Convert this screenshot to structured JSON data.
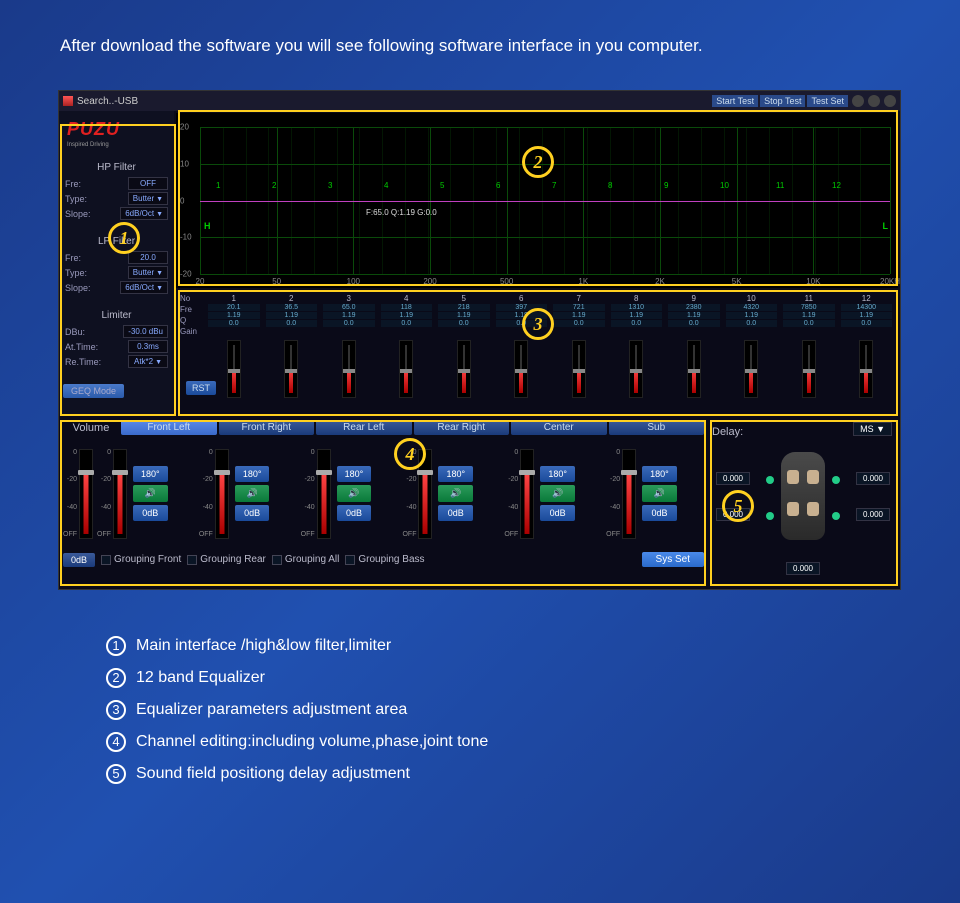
{
  "header_text": "After download the software you will see following software interface in you computer.",
  "titlebar": {
    "title": "Search..-USB",
    "buttons": [
      "Start Test",
      "Stop Test",
      "Test Set"
    ]
  },
  "logo": "PUZU",
  "logo_sub": "Inspired Driving",
  "hp_filter": {
    "title": "HP Filter",
    "fre_label": "Fre:",
    "fre_val": "OFF",
    "type_label": "Type:",
    "type_val": "Butter",
    "slope_label": "Slope:",
    "slope_val": "6dB/Oct"
  },
  "lp_filter": {
    "title": "LP Filter",
    "fre_label": "Fre:",
    "fre_val": "20.0",
    "type_label": "Type:",
    "type_val": "Butter",
    "slope_label": "Slope:",
    "slope_val": "6dB/Oct"
  },
  "limiter": {
    "title": "Limiter",
    "dbu_label": "DBu:",
    "dbu_val": "-30.0 dBu",
    "attime_label": "At.Time:",
    "attime_val": "0.3ms",
    "retime_label": "Re.Time:",
    "retime_val": "Atk*2"
  },
  "geq_mode": "GEQ Mode",
  "rst": "RST",
  "eq_graph": {
    "y_ticks": [
      "20",
      "10",
      "0",
      "-10",
      "-20"
    ],
    "x_ticks": [
      "20",
      "50",
      "100",
      "200",
      "500",
      "1K",
      "2K",
      "5K",
      "10K",
      "20KH"
    ],
    "markers": [
      "1",
      "2",
      "3",
      "4",
      "5",
      "6",
      "7",
      "8",
      "9",
      "10",
      "11",
      "12"
    ],
    "info": "F:65.0 Q:1.19 G:0.0",
    "left_label": "H",
    "right_label": "L"
  },
  "eq_params": {
    "headers": [
      "No",
      "Fre",
      "Q",
      "Gain"
    ],
    "cols": [
      {
        "no": "1",
        "fre": "20.1",
        "q": "1.19",
        "gain": "0.0"
      },
      {
        "no": "2",
        "fre": "36.5",
        "q": "1.19",
        "gain": "0.0"
      },
      {
        "no": "3",
        "fre": "65.0",
        "q": "1.19",
        "gain": "0.0"
      },
      {
        "no": "4",
        "fre": "118",
        "q": "1.19",
        "gain": "0.0"
      },
      {
        "no": "5",
        "fre": "218",
        "q": "1.19",
        "gain": "0.0"
      },
      {
        "no": "6",
        "fre": "397",
        "q": "1.19",
        "gain": "0.0"
      },
      {
        "no": "7",
        "fre": "721",
        "q": "1.19",
        "gain": "0.0"
      },
      {
        "no": "8",
        "fre": "1310",
        "q": "1.19",
        "gain": "0.0"
      },
      {
        "no": "9",
        "fre": "2380",
        "q": "1.19",
        "gain": "0.0"
      },
      {
        "no": "10",
        "fre": "4320",
        "q": "1.19",
        "gain": "0.0"
      },
      {
        "no": "11",
        "fre": "7850",
        "q": "1.19",
        "gain": "0.0"
      },
      {
        "no": "12",
        "fre": "14300",
        "q": "1.19",
        "gain": "0.0"
      }
    ]
  },
  "channels": {
    "volume_label": "Volume",
    "tabs": [
      "Front Left",
      "Front Right",
      "Rear Left",
      "Rear Right",
      "Center",
      "Sub"
    ],
    "scale": [
      "0",
      "-20",
      "-40",
      "OFF"
    ],
    "btn_180": "180°",
    "btn_speaker": "🔊",
    "btn_0db": "0dB",
    "footer_0db": "0dB",
    "groups": [
      "Grouping Front",
      "Grouping Rear",
      "Grouping All",
      "Grouping Bass"
    ],
    "sys_set": "Sys Set"
  },
  "delay": {
    "title": "Delay:",
    "unit": "MS  ▼",
    "vals": [
      "0.000",
      "0.000",
      "0.000",
      "0.000",
      "0.000"
    ]
  },
  "callouts": {
    "c1": "1",
    "c2": "2",
    "c3": "3",
    "c4": "4",
    "c5": "5"
  },
  "legend": [
    {
      "n": "①",
      "t": "Main interface /high&low filter,limiter"
    },
    {
      "n": "②",
      "t": "12 band Equalizer"
    },
    {
      "n": "③",
      "t": "Equalizer parameters adjustment area"
    },
    {
      "n": "④",
      "t": "Channel editing:including volume,phase,joint tone"
    },
    {
      "n": "⑤",
      "t": "Sound field positiong delay adjustment"
    }
  ]
}
